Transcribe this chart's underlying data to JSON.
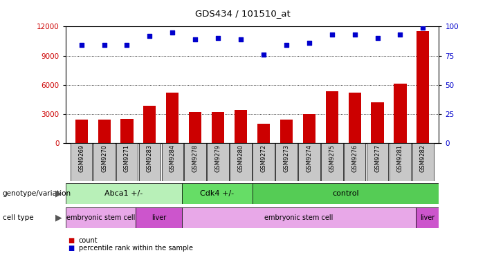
{
  "title": "GDS434 / 101510_at",
  "samples": [
    "GSM9269",
    "GSM9270",
    "GSM9271",
    "GSM9283",
    "GSM9284",
    "GSM9278",
    "GSM9279",
    "GSM9280",
    "GSM9272",
    "GSM9273",
    "GSM9274",
    "GSM9275",
    "GSM9276",
    "GSM9277",
    "GSM9281",
    "GSM9282"
  ],
  "counts": [
    2400,
    2400,
    2500,
    3800,
    5200,
    3200,
    3200,
    3400,
    2000,
    2400,
    3000,
    5300,
    5200,
    4200,
    6100,
    11500
  ],
  "percentiles": [
    84,
    84,
    84,
    92,
    95,
    89,
    90,
    89,
    76,
    84,
    86,
    93,
    93,
    90,
    93,
    99
  ],
  "bar_color": "#cc0000",
  "dot_color": "#0000cc",
  "ylim_left": [
    0,
    12000
  ],
  "ylim_right": [
    0,
    100
  ],
  "yticks_left": [
    0,
    3000,
    6000,
    9000,
    12000
  ],
  "yticks_right": [
    0,
    25,
    50,
    75,
    100
  ],
  "grid_values": [
    3000,
    6000,
    9000
  ],
  "genotype_groups": [
    {
      "label": "Abca1 +/-",
      "start": 0,
      "end": 5,
      "color": "#b8f0b8"
    },
    {
      "label": "Cdk4 +/-",
      "start": 5,
      "end": 8,
      "color": "#66dd66"
    },
    {
      "label": "control",
      "start": 8,
      "end": 16,
      "color": "#55cc55"
    }
  ],
  "celltype_groups": [
    {
      "label": "embryonic stem cell",
      "start": 0,
      "end": 3,
      "color": "#e8a8e8"
    },
    {
      "label": "liver",
      "start": 3,
      "end": 5,
      "color": "#cc55cc"
    },
    {
      "label": "embryonic stem cell",
      "start": 5,
      "end": 15,
      "color": "#e8a8e8"
    },
    {
      "label": "liver",
      "start": 15,
      "end": 16,
      "color": "#cc55cc"
    }
  ],
  "background_color": "#ffffff",
  "tick_label_bg": "#c8c8c8"
}
